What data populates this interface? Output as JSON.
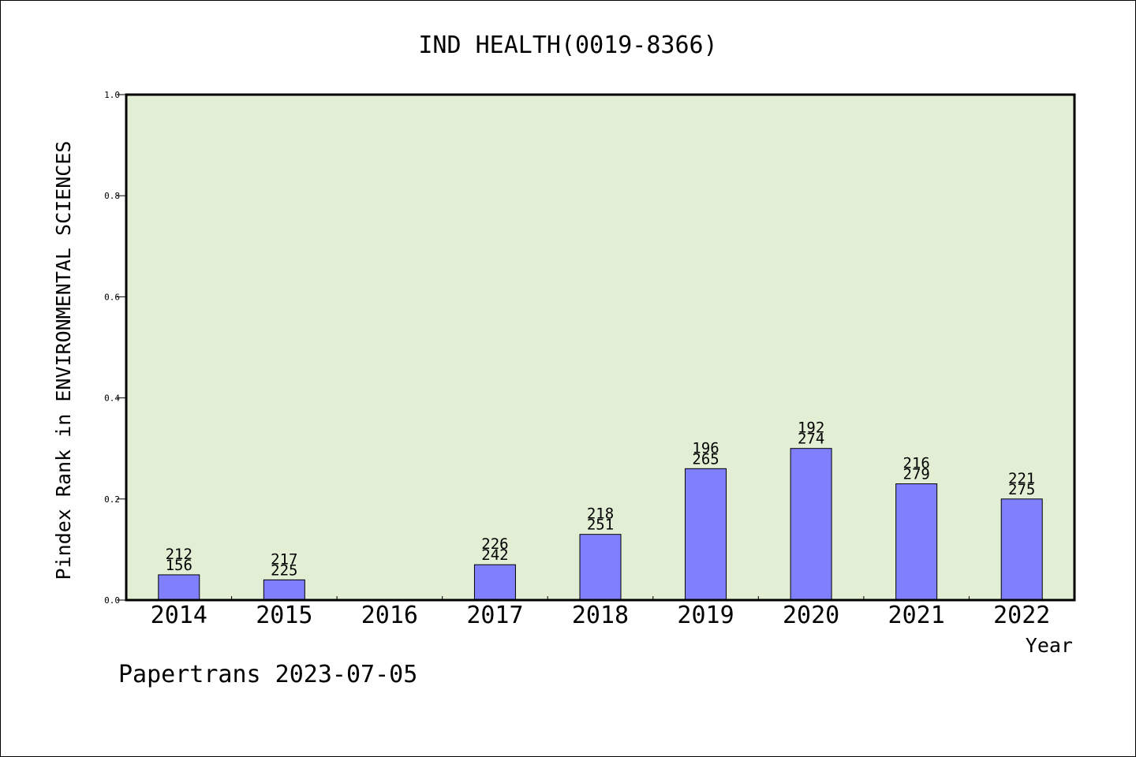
{
  "chart_data": {
    "type": "bar",
    "title": "IND HEALTH(0019-8366)",
    "xlabel": "Year",
    "ylabel": "Pindex Rank in ENVIRONMENTAL SCIENCES",
    "ylim": [
      0,
      1.0
    ],
    "yticks": [
      "0.0",
      "0.2",
      "0.4",
      "0.6",
      "0.8",
      "1.0"
    ],
    "ytick_values": [
      0.0,
      0.2,
      0.4,
      0.6,
      0.8,
      1.0
    ],
    "categories": [
      "2014",
      "2015",
      "2016",
      "2017",
      "2018",
      "2019",
      "2020",
      "2021",
      "2022"
    ],
    "values": [
      0.05,
      0.04,
      null,
      0.07,
      0.13,
      0.26,
      0.3,
      0.23,
      0.2
    ],
    "labels_top": [
      "212",
      "217",
      "",
      "226",
      "218",
      "196",
      "192",
      "216",
      "221"
    ],
    "labels_bottom": [
      "156",
      "225",
      "",
      "242",
      "251",
      "265",
      "274",
      "279",
      "275"
    ],
    "grid": false,
    "colors": {
      "plot_background": "#e2efd5",
      "bar_fill": "#8080ff",
      "bar_stroke": "#000000"
    }
  },
  "footer": "Papertrans 2023-07-05"
}
